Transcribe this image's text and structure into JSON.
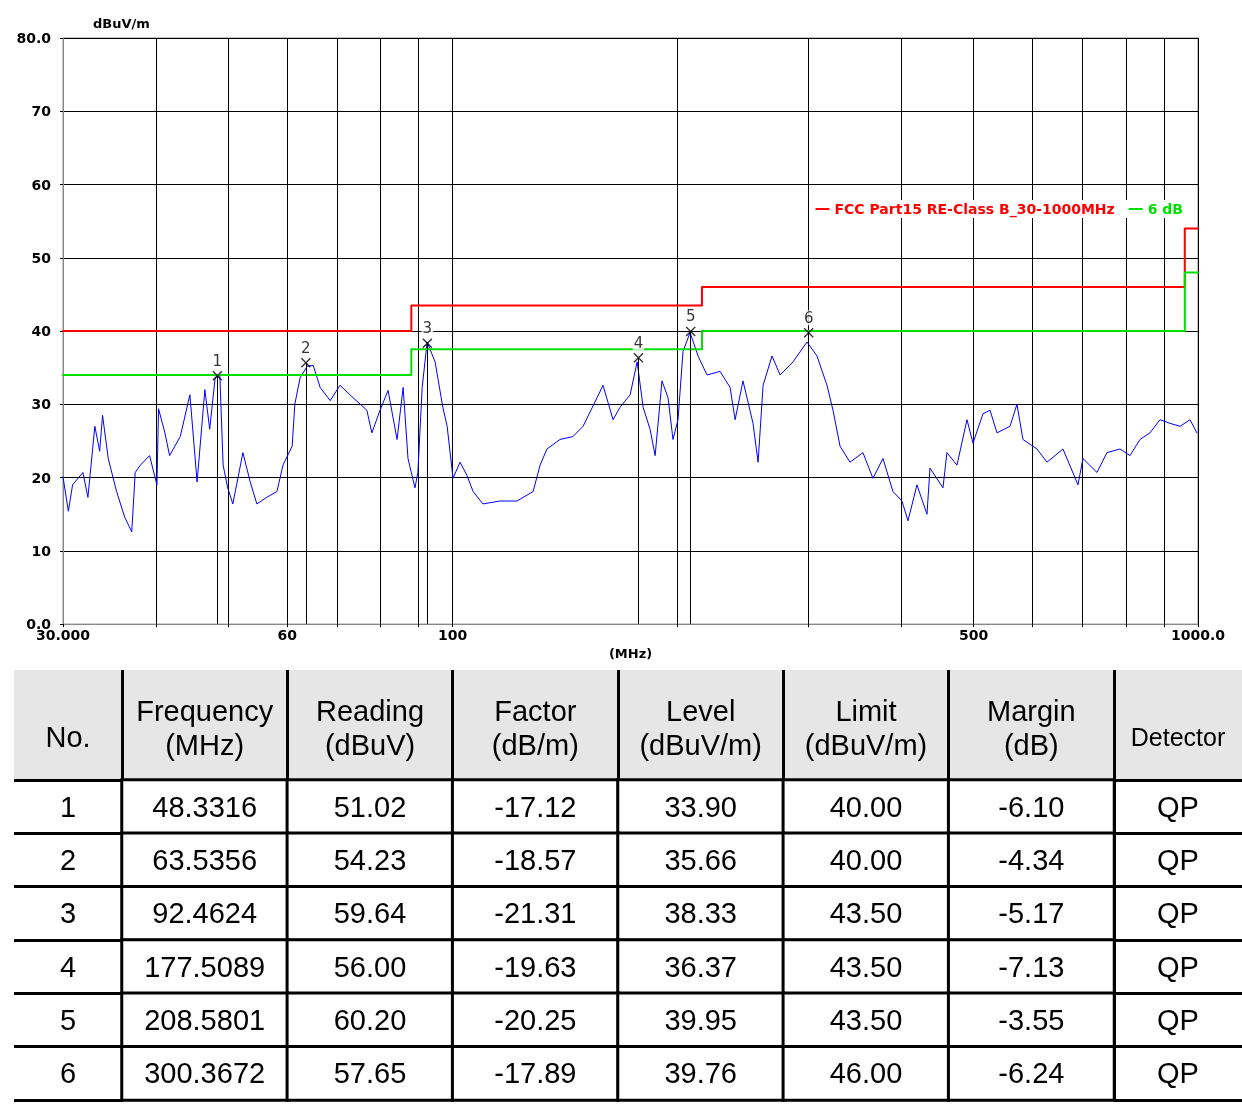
{
  "chart_data": [
    {
      "type": "line",
      "ylabel": "dBuV/m",
      "xlabel": "(MHz)",
      "log": "x",
      "grid": true,
      "legend": "top right",
      "xlim": [
        30,
        1000
      ],
      "xticks": [
        {
          "value": 30,
          "label": "30.000"
        },
        {
          "value": 40,
          "label": null
        },
        {
          "value": 50,
          "label": null
        },
        60,
        {
          "value": 70,
          "label": null
        },
        {
          "value": 80,
          "label": null
        },
        {
          "value": 90,
          "label": null
        },
        100,
        {
          "value": 200,
          "label": null
        },
        {
          "value": 300,
          "label": null
        },
        {
          "value": 400,
          "label": null
        },
        500,
        {
          "value": 600,
          "label": null
        },
        {
          "value": 700,
          "label": null
        },
        {
          "value": 800,
          "label": null
        },
        {
          "value": 900,
          "label": null
        },
        {
          "value": 1000,
          "label": "1000.0"
        }
      ],
      "ylim": [
        0,
        80
      ],
      "yticks": [
        {
          "value": 0,
          "label": "0.0"
        },
        10,
        20,
        30,
        40,
        50,
        60,
        70,
        {
          "value": 80,
          "label": "80.0"
        }
      ],
      "series": [
        {
          "color": "#0000ff",
          "x": [
            30.0,
            30.5,
            30.9,
            31.9,
            32.4,
            33.1,
            33.6,
            33.9,
            34.5,
            35.4,
            36.3,
            37.1,
            37.5,
            38.1,
            39.2,
            40.1,
            40.3,
            41.1,
            41.7,
            43.1,
            44.4,
            45.4,
            46.5,
            47.2,
            48.0,
            48.7,
            49.2,
            49.9,
            50.7,
            52.3,
            53.5,
            54.6,
            56.3,
            58.1,
            59.2,
            60.9,
            61.4,
            62.4,
            63.8,
            65.0,
            66.4,
            68.5,
            70.6,
            73.5,
            76.7,
            77.9,
            79.9,
            81.9,
            84.2,
            85.8,
            87.1,
            89.0,
            89.8,
            91.0,
            92.4,
            94.7,
            97.0,
            98.3,
            100.1,
            102.3,
            104.5,
            106.5,
            109.8,
            115.7,
            122.0,
            128.2,
            131.0,
            133.8,
            139.3,
            145.0,
            149.6,
            156.2,
            159.1,
            164.1,
            167.7,
            173.0,
            176.8,
            180.1,
            184.0,
            186.9,
            190.9,
            194.5,
            197.5,
            200.6,
            203.7,
            208.2,
            213.4,
            219.4,
            228.4,
            235.6,
            239.3,
            245.2,
            252.9,
            256.9,
            260.9,
            268.2,
            275.0,
            286.2,
            298.8,
            308.2,
            317.8,
            323.8,
            330.9,
            341.2,
            355.2,
            366.3,
            377.8,
            389.7,
            400.7,
            408.2,
            419.7,
            432.9,
            436.9,
            454.8,
            460.4,
            474.9,
            489.8,
            499.0,
            514.6,
            525.9,
            537.4,
            559.4,
            571.6,
            582.3,
            608.1,
            627.2,
            658.9,
            690.2,
            700.9,
            731.9,
            754.8,
            785.8,
            810.5,
            835.9,
            862.1,
            889.2,
            917.3,
            946.1,
            975.7,
            996.5
          ],
          "values": [
            20.1,
            15.4,
            19.0,
            20.7,
            17.3,
            27.0,
            23.6,
            28.5,
            22.6,
            18.1,
            14.6,
            12.6,
            20.7,
            21.7,
            23.0,
            19.0,
            29.4,
            26.1,
            23.0,
            25.6,
            31.3,
            19.4,
            32.0,
            26.6,
            33.6,
            34.0,
            21.7,
            18.6,
            16.4,
            23.4,
            19.4,
            16.4,
            17.3,
            18.1,
            21.7,
            24.3,
            30.0,
            33.6,
            35.2,
            35.3,
            32.3,
            30.5,
            32.6,
            30.9,
            29.2,
            26.1,
            29.2,
            31.9,
            25.2,
            32.3,
            22.6,
            18.6,
            20.7,
            32.3,
            38.5,
            35.8,
            29.6,
            27.0,
            19.9,
            22.1,
            20.3,
            18.1,
            16.4,
            16.8,
            16.8,
            18.1,
            21.7,
            23.9,
            25.2,
            25.6,
            27.0,
            30.9,
            32.6,
            27.9,
            29.6,
            31.3,
            35.8,
            29.6,
            26.6,
            23.0,
            33.2,
            30.9,
            25.2,
            27.9,
            37.2,
            39.8,
            36.6,
            34.0,
            34.5,
            32.3,
            27.9,
            33.2,
            27.4,
            22.1,
            32.6,
            36.6,
            34.0,
            35.8,
            38.5,
            36.6,
            32.6,
            29.2,
            24.3,
            22.1,
            23.4,
            19.9,
            22.6,
            18.1,
            16.8,
            14.1,
            19.0,
            15.0,
            21.3,
            18.6,
            23.4,
            21.7,
            27.9,
            24.7,
            28.7,
            29.2,
            26.1,
            27.0,
            30.0,
            25.2,
            23.9,
            22.1,
            23.9,
            19.0,
            22.6,
            20.7,
            23.4,
            23.9,
            23.0,
            25.2,
            26.1,
            27.9,
            27.4,
            27.0,
            27.9,
            26.1
          ]
        },
        {
          "type": "step",
          "name": "FCC Part15 RE-Class B_30-1000MHz",
          "color": "#ff0000",
          "x": [
            30,
            88,
            216,
            960,
            1000
          ],
          "values": [
            40,
            43.5,
            46,
            54,
            54
          ]
        },
        {
          "type": "step",
          "name": "6 dB",
          "color": "#00e000",
          "x": [
            30,
            88,
            216,
            960,
            1000
          ],
          "values": [
            34,
            37.5,
            40,
            48,
            48
          ]
        },
        {
          "type": "lollipop",
          "color": "#000000",
          "marker": "cross",
          "x": [
            48.3316,
            63.5356,
            92.4624,
            177.5089,
            208.5801,
            300.3672
          ],
          "values": [
            33.9,
            35.66,
            38.33,
            36.37,
            39.95,
            39.76
          ]
        }
      ],
      "annotations": [
        {
          "text": "1",
          "x": 48.3316,
          "y": 33.9
        },
        {
          "text": "2",
          "x": 63.5356,
          "y": 35.66
        },
        {
          "text": "3",
          "x": 92.4624,
          "y": 38.33
        },
        {
          "text": "4",
          "x": 177.5089,
          "y": 36.37
        },
        {
          "text": "5",
          "x": 208.5801,
          "y": 39.95
        },
        {
          "text": "6",
          "x": 300.3672,
          "y": 39.76
        }
      ]
    },
    {
      "type": "heatmap",
      "ylabel": "No.",
      "y2label": "Detector",
      "categories": [
        "Frequency (MHz)",
        "Reading (dBuV)",
        "Factor (dB/m)",
        "Level (dBuV/m)",
        "Limit (dBuV/m)",
        "Margin (dB)"
      ],
      "y_categories": [
        "1",
        "2",
        "3",
        "4",
        "5",
        "6"
      ],
      "y2_categories": [
        "QP",
        "QP",
        "QP",
        "QP",
        "QP",
        "QP"
      ],
      "cells": [
        [
          null,
          null,
          null,
          null,
          null,
          null
        ],
        [
          null,
          null,
          null,
          null,
          null,
          null
        ],
        [
          null,
          null,
          null,
          null,
          null,
          null
        ],
        [
          null,
          null,
          null,
          null,
          null,
          null
        ],
        [
          null,
          null,
          null,
          null,
          null,
          null
        ],
        [
          null,
          null,
          null,
          null,
          null,
          null
        ]
      ],
      "cell_labels": [
        [
          "48.3316",
          "51.02",
          "-17.12",
          "33.90",
          "40.00",
          "-6.10"
        ],
        [
          "63.5356",
          "54.23",
          "-18.57",
          "35.66",
          "40.00",
          "-4.34"
        ],
        [
          "92.4624",
          "59.64",
          "-21.31",
          "38.33",
          "43.50",
          "-5.17"
        ],
        [
          "177.5089",
          "56.00",
          "-19.63",
          "36.37",
          "43.50",
          "-7.13"
        ],
        [
          "208.5801",
          "60.20",
          "-20.25",
          "39.95",
          "43.50",
          "-3.55"
        ],
        [
          "300.3672",
          "57.65",
          "-17.89",
          "39.76",
          "46.00",
          "-6.24"
        ]
      ]
    }
  ]
}
